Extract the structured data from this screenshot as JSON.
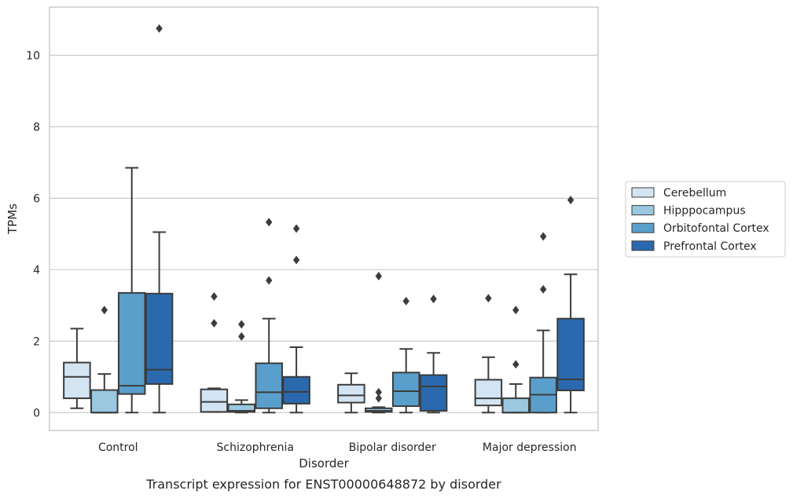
{
  "chart_data": {
    "type": "box",
    "caption": "Transcript expression for ENST00000648872 by disorder",
    "xlabel": "Disorder",
    "ylabel": "TPMs",
    "ylim": [
      -0.5,
      11.35
    ],
    "yticks": [
      0,
      2,
      4,
      6,
      8,
      10
    ],
    "grid": "horizontal",
    "legend_position": "right",
    "categories": [
      "Control",
      "Schizophrenia",
      "Bipolar disorder",
      "Major depression"
    ],
    "series": [
      {
        "name": "Cerebellum",
        "color": "#d3e4f3",
        "boxes": [
          {
            "whislo": 0.12,
            "q1": 0.4,
            "med": 1.0,
            "q3": 1.4,
            "whishi": 2.35,
            "fliers": []
          },
          {
            "whislo": 0.02,
            "q1": 0.02,
            "med": 0.3,
            "q3": 0.65,
            "whishi": 0.68,
            "fliers": [
              2.5,
              3.25
            ]
          },
          {
            "whislo": 0.0,
            "q1": 0.28,
            "med": 0.48,
            "q3": 0.78,
            "whishi": 1.1,
            "fliers": []
          },
          {
            "whislo": 0.0,
            "q1": 0.2,
            "med": 0.4,
            "q3": 0.92,
            "whishi": 1.55,
            "fliers": [
              3.2
            ]
          }
        ]
      },
      {
        "name": "Hipppocampus",
        "color": "#9ac8e0",
        "boxes": [
          {
            "whislo": 0.0,
            "q1": 0.0,
            "med": 0.0,
            "q3": 0.63,
            "whishi": 1.08,
            "fliers": [
              2.87
            ]
          },
          {
            "whislo": 0.0,
            "q1": 0.02,
            "med": 0.05,
            "q3": 0.23,
            "whishi": 0.35,
            "fliers": [
              2.13,
              2.47
            ]
          },
          {
            "whislo": 0.0,
            "q1": 0.02,
            "med": 0.05,
            "q3": 0.12,
            "whishi": 0.15,
            "fliers": [
              0.4,
              0.57,
              3.82
            ]
          },
          {
            "whislo": 0.0,
            "q1": 0.0,
            "med": 0.0,
            "q3": 0.4,
            "whishi": 0.8,
            "fliers": [
              1.35,
              2.87
            ]
          }
        ]
      },
      {
        "name": "Orbitofontal Cortex",
        "color": "#5a9fcb",
        "boxes": [
          {
            "whislo": 0.0,
            "q1": 0.52,
            "med": 0.75,
            "q3": 3.35,
            "whishi": 6.85,
            "fliers": []
          },
          {
            "whislo": 0.0,
            "q1": 0.12,
            "med": 0.57,
            "q3": 1.38,
            "whishi": 2.63,
            "fliers": [
              3.7,
              5.33
            ]
          },
          {
            "whislo": 0.0,
            "q1": 0.18,
            "med": 0.6,
            "q3": 1.12,
            "whishi": 1.78,
            "fliers": [
              3.12
            ]
          },
          {
            "whislo": 0.0,
            "q1": 0.0,
            "med": 0.5,
            "q3": 0.98,
            "whishi": 2.3,
            "fliers": [
              3.45,
              4.93
            ]
          }
        ]
      },
      {
        "name": "Prefrontal Cortex",
        "color": "#2a69ad",
        "boxes": [
          {
            "whislo": 0.0,
            "q1": 0.8,
            "med": 1.2,
            "q3": 3.33,
            "whishi": 5.05,
            "fliers": [
              10.75
            ]
          },
          {
            "whislo": 0.0,
            "q1": 0.25,
            "med": 0.58,
            "q3": 1.0,
            "whishi": 1.83,
            "fliers": [
              4.27,
              5.15
            ]
          },
          {
            "whislo": 0.0,
            "q1": 0.05,
            "med": 0.73,
            "q3": 1.05,
            "whishi": 1.67,
            "fliers": [
              3.18
            ]
          },
          {
            "whislo": 0.0,
            "q1": 0.62,
            "med": 0.93,
            "q3": 2.63,
            "whishi": 3.87,
            "fliers": [
              5.95
            ]
          }
        ]
      }
    ]
  }
}
